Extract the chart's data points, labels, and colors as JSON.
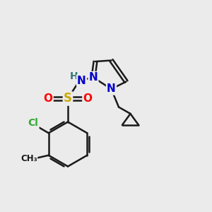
{
  "background_color": "#ebebeb",
  "bond_color": "#1a1a1a",
  "bond_width": 1.8,
  "atom_colors": {
    "N": "#0000cc",
    "O": "#ff0000",
    "S": "#ccaa00",
    "Cl": "#33aa33",
    "H": "#337777",
    "C": "#1a1a1a"
  },
  "font_size": 10,
  "figsize": [
    3.0,
    3.0
  ],
  "dpi": 100
}
